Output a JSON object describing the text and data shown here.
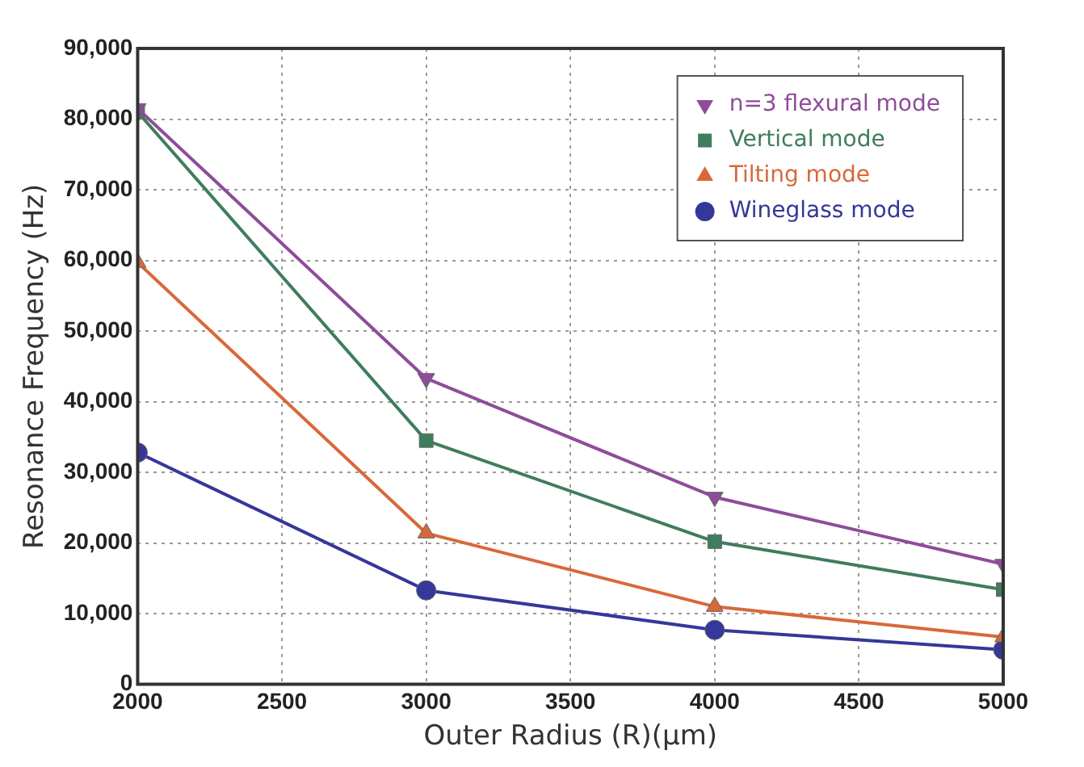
{
  "chart_data": {
    "type": "line",
    "xlabel": "Outer Radius (R)(μm)",
    "ylabel": "Resonance Frequency (Hz)",
    "x": [
      2000,
      3000,
      4000,
      5000
    ],
    "xlim": [
      2000,
      5000
    ],
    "xticks": [
      2000,
      2500,
      3000,
      3500,
      4000,
      4500,
      5000
    ],
    "ylim": [
      0,
      90000
    ],
    "yticks": [
      {
        "value": 0,
        "label": "0"
      },
      {
        "value": 10000,
        "label": "10,000"
      },
      {
        "value": 20000,
        "label": "20,000"
      },
      {
        "value": 30000,
        "label": "30,000"
      },
      {
        "value": 40000,
        "label": "40,000"
      },
      {
        "value": 50000,
        "label": "50,000"
      },
      {
        "value": 60000,
        "label": "60,000"
      },
      {
        "value": 70000,
        "label": "70,000"
      },
      {
        "value": 80000,
        "label": "80,000"
      },
      {
        "value": 90000,
        "label": "90,000"
      }
    ],
    "grid": true,
    "legend": "top right",
    "line_style": "solid",
    "series": [
      {
        "name": "n=3 flexural mode",
        "color": "#8e4c9a",
        "marker": "triangle-down",
        "values": [
          81500,
          43300,
          26500,
          17000
        ]
      },
      {
        "name": "Vertical mode",
        "color": "#3f7d5c",
        "marker": "square",
        "values": [
          81000,
          34500,
          20200,
          13400
        ]
      },
      {
        "name": "Tilting mode",
        "color": "#d8683a",
        "marker": "triangle",
        "values": [
          59700,
          21400,
          11000,
          6700
        ]
      },
      {
        "name": "Wineglass mode",
        "color": "#35379a",
        "marker": "circle",
        "values": [
          32800,
          13300,
          7700,
          4900
        ]
      }
    ]
  }
}
